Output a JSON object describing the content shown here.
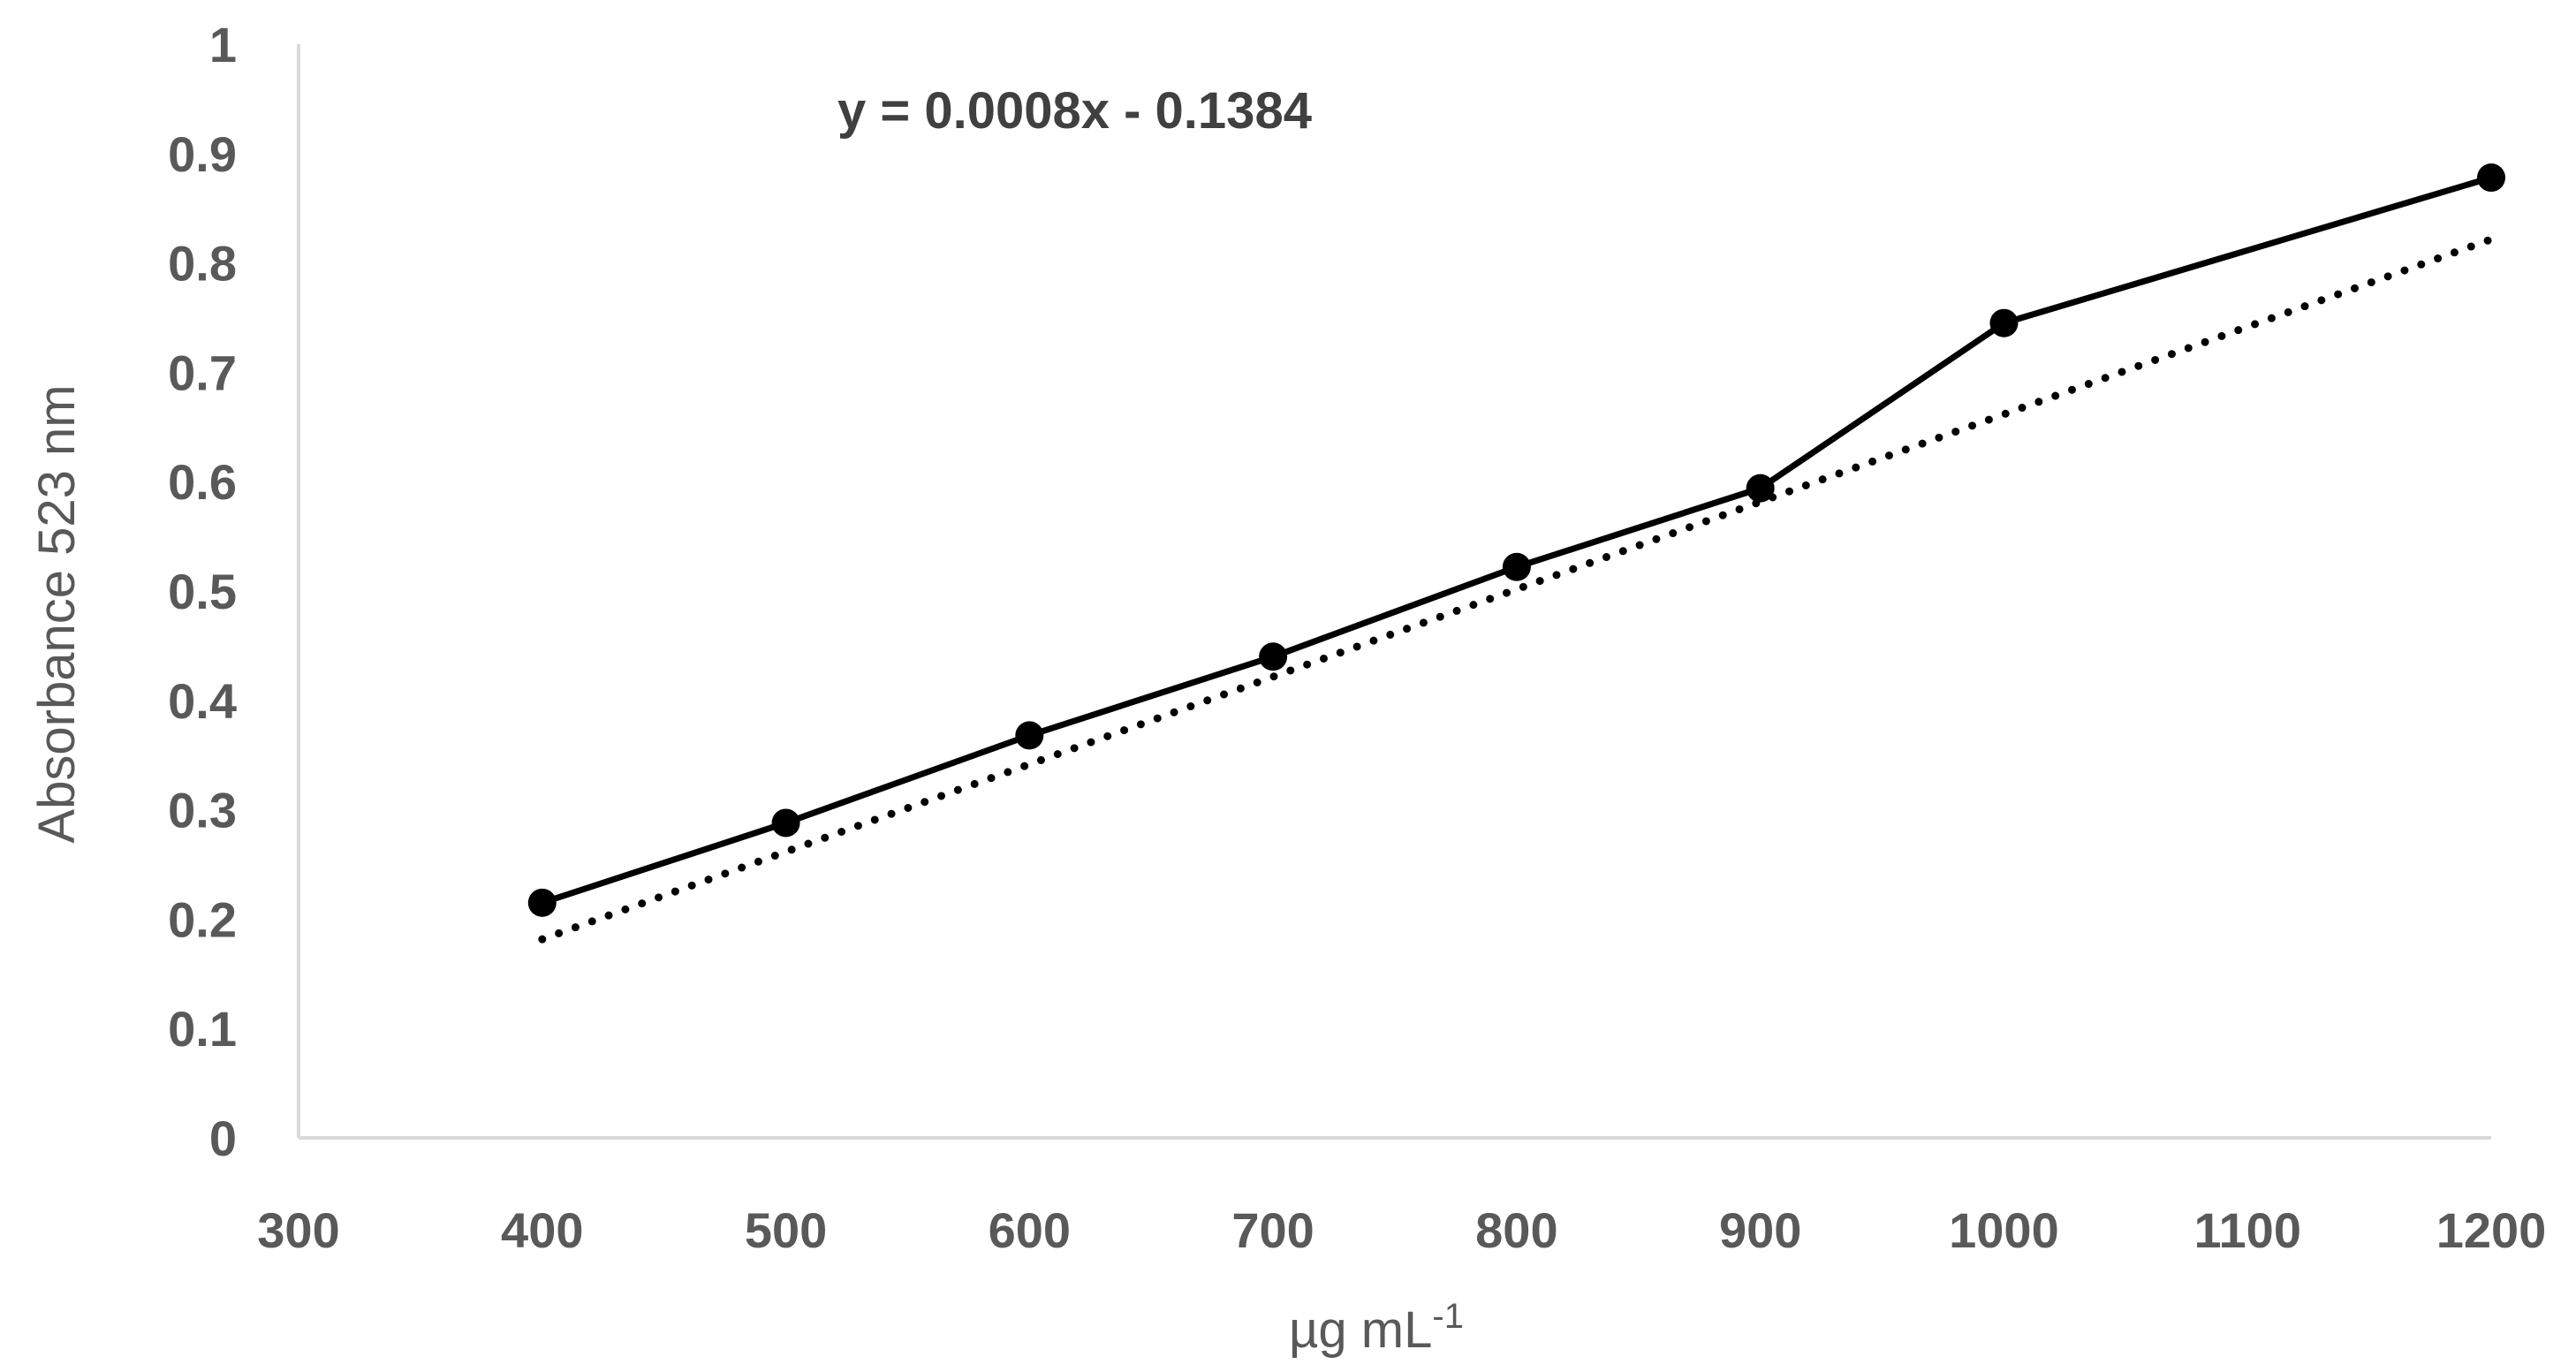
{
  "chart_data": {
    "type": "line",
    "title": "",
    "xlabel": "µg mL",
    "xlabel_superscript": "-1",
    "ylabel": "Absorbance  523 nm",
    "xlim": [
      300,
      1200
    ],
    "ylim": [
      0,
      1
    ],
    "x_ticks": [
      "300",
      "400",
      "500",
      "600",
      "700",
      "800",
      "900",
      "1000",
      "1100",
      "1200"
    ],
    "y_ticks": [
      "0",
      "0.1",
      "0.2",
      "0.3",
      "0.4",
      "0.5",
      "0.6",
      "0.7",
      "0.8",
      "0.9",
      "1"
    ],
    "grid": false,
    "legend": "none",
    "series": [
      {
        "x": [
          400,
          500,
          600,
          700,
          800,
          900,
          1000,
          1200
        ],
        "y": [
          0.215,
          0.288,
          0.368,
          0.44,
          0.522,
          0.594,
          0.745,
          0.878
        ],
        "color": "#000000",
        "marker": "circle"
      }
    ],
    "trendline": {
      "type": "linear",
      "slope": 0.0008,
      "intercept": -0.1384,
      "x_range": [
        400,
        1200
      ],
      "equation_label": "y = 0.0008x - 0.1384",
      "style": "dotted",
      "color": "#000000"
    },
    "axis_color": "#d9d9d9"
  }
}
